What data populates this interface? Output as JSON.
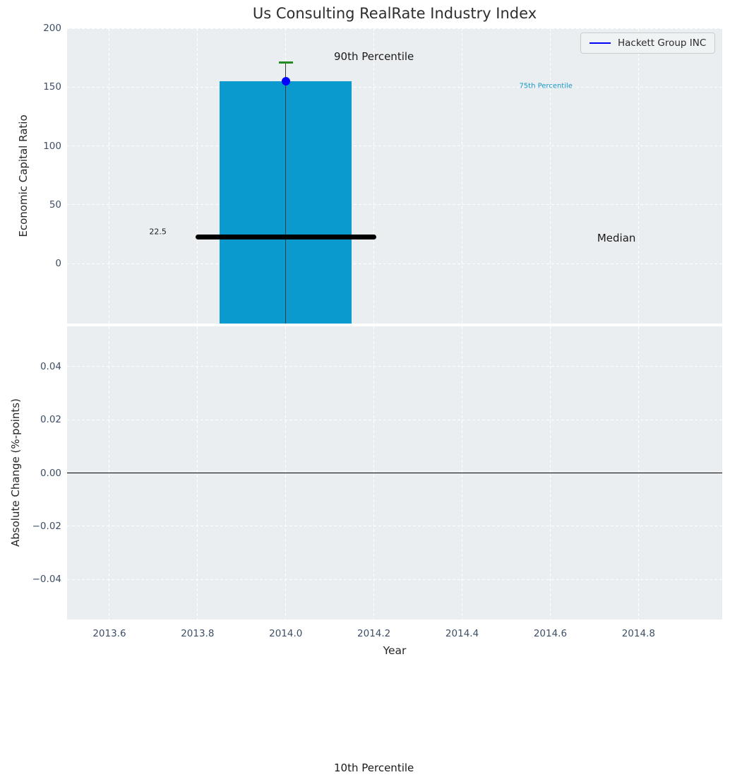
{
  "figure": {
    "title": "Us Consulting RealRate Industry Index"
  },
  "legend": {
    "label": "Hackett Group INC",
    "line_color": "#0000ff"
  },
  "axes_shared": {
    "xlabel": "Year",
    "xticks": {
      "values": [
        2013.6,
        2013.8,
        2014.0,
        2014.2,
        2014.4,
        2014.6,
        2014.8
      ],
      "labels": [
        "2013.6",
        "2013.8",
        "2014.0",
        "2014.2",
        "2014.4",
        "2014.6",
        "2014.8"
      ]
    }
  },
  "colors": {
    "axes_bg": "#eaeef0",
    "grid": "#ffffff",
    "tick_label": "#3d4e66",
    "axis_label": "#262626",
    "title": "#2e2e2e"
  },
  "chart_data": [
    {
      "type": "bar",
      "ylabel": "Economic Capital Ratio",
      "xlim": [
        2013.504,
        2014.99
      ],
      "ylim": [
        -51,
        200
      ],
      "yticks": {
        "values": [
          0,
          50,
          100,
          150,
          200
        ],
        "labels": [
          "0",
          "50",
          "100",
          "150",
          "200"
        ]
      },
      "grid": true,
      "bar": {
        "x": 2014.0,
        "width": 0.3,
        "top": 155.0,
        "bottom": "clipped-below-axis",
        "color": "#0a9acd",
        "meaning": "75th-to-10th percentile range"
      },
      "whisker": {
        "x": 2014.0,
        "top": 170.8,
        "cap_half_width": 0.016,
        "cap_color": "#228b22",
        "line_color": "#3a3a3a"
      },
      "median": {
        "value": 22.5,
        "x_start": 2013.8,
        "x_end": 2014.2,
        "color": "#000000"
      },
      "series": [
        {
          "name": "Hackett Group INC",
          "x": 2014.0,
          "y": 155.0,
          "marker": "circle",
          "color": "#0000ff"
        }
      ],
      "annotations": [
        {
          "text": "90th Percentile",
          "x": 2014.2,
          "y": 176,
          "color": "#1a1a1a",
          "size": 15
        },
        {
          "text": "75th Percentile",
          "x": 2014.59,
          "y": 150.7,
          "color": "#1998c9",
          "size": 10
        },
        {
          "text": "Median",
          "x": 2014.75,
          "y": 21.6,
          "color": "#1a1a1a",
          "size": 15
        },
        {
          "text": "22.5",
          "x": 2013.71,
          "y": 27,
          "color": "#1a1a1a",
          "size": 11
        },
        {
          "text": "10th Percentile",
          "x": 2014.2,
          "y": -429,
          "color": "#1a1a1a",
          "size": 15
        }
      ]
    },
    {
      "type": "line",
      "ylabel": "Absolute Change (%-points)",
      "ylim": [
        -0.055,
        0.055
      ],
      "yticks": {
        "values": [
          0.04,
          0.02,
          0,
          -0.02,
          -0.04
        ],
        "labels": [
          "0.04",
          "0.02",
          "0.00",
          "−0.02",
          "−0.04"
        ]
      },
      "grid": true,
      "zero_line": {
        "y": 0.0,
        "color": "#000000"
      }
    }
  ]
}
